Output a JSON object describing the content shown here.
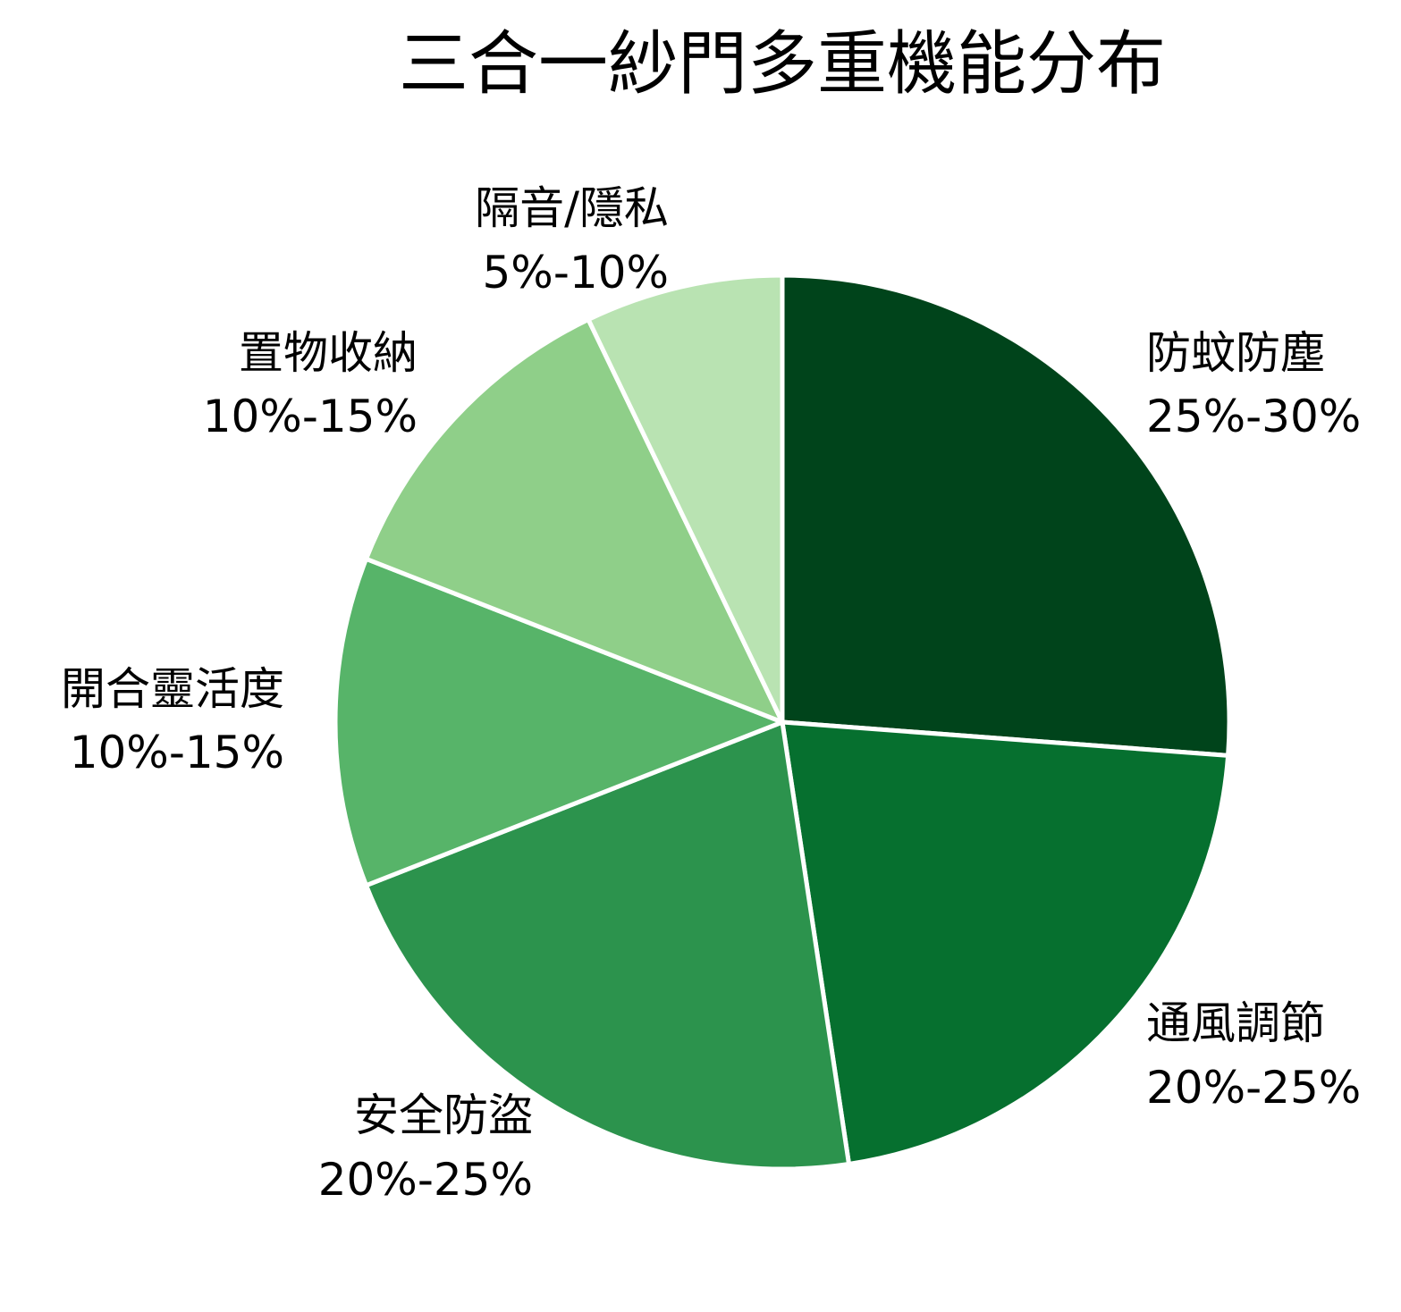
{
  "chart_data": {
    "type": "pie",
    "title": "三合一紗門多重機能分布",
    "slices": [
      {
        "label": "防蚊防塵",
        "range": "25%-30%",
        "value": 27.5,
        "color": "#00441b"
      },
      {
        "label": "通風調節",
        "range": "20%-25%",
        "value": 22.5,
        "color": "#06702f"
      },
      {
        "label": "安全防盜",
        "range": "20%-25%",
        "value": 22.5,
        "color": "#2c934d"
      },
      {
        "label": "開合靈活度",
        "range": "10%-15%",
        "value": 12.5,
        "color": "#57b469"
      },
      {
        "label": "置物收納",
        "range": "10%-15%",
        "value": 12.5,
        "color": "#8fcf89"
      },
      {
        "label": "隔音/隱私",
        "range": "5%-10%",
        "value": 7.5,
        "color": "#b9e3b2"
      }
    ],
    "start_angle": "12 o'clock",
    "direction": "clockwise",
    "legend": "none"
  }
}
